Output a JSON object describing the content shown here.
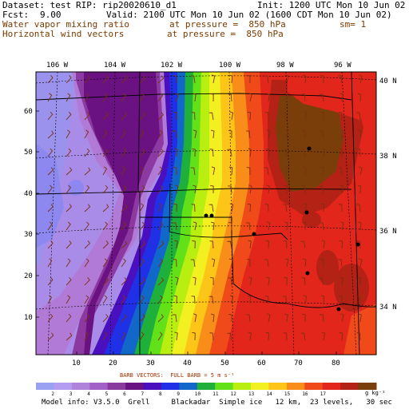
{
  "header": {
    "dataset_label": "Dataset: test",
    "rip_label": "RIP: rip20020610_d1",
    "init_label": "Init: 1200 UTC Mon 10 Jun 02",
    "fcst_label": "Fcst:",
    "fcst_value": "9.00",
    "valid_label": "Valid: 2100 UTC Mon 10 Jun 02 (1600 CDT Mon 10 Jun 02)",
    "field1_name": "Water vapor mixing ratio",
    "field1_level": "at pressure =  850 hPa",
    "field1_extra": "sm= 1",
    "field2_name": "Horizontal wind vectors",
    "field2_level": "at pressure =  850 hPa"
  },
  "map": {
    "top_longitude_labels": [
      "106 W",
      "104 W",
      "102 W",
      "100 W",
      "98 W",
      "96 W"
    ],
    "right_latitude_labels": [
      "40 N",
      "38 N",
      "36 N",
      "34 N"
    ],
    "left_grid_labels": [
      "60",
      "50",
      "40",
      "30",
      "20",
      "10"
    ],
    "bottom_grid_labels": [
      "10",
      "20",
      "30",
      "40",
      "50",
      "60",
      "70",
      "80"
    ]
  },
  "legend": {
    "barb_note": "BARB VECTORS:  FULL BARB = 5 m s⁻¹",
    "values": [
      "2",
      "3",
      "4",
      "5",
      "6",
      "7",
      "8",
      "9",
      "10",
      "11",
      "12",
      "13",
      "14",
      "15",
      "16",
      "17"
    ],
    "units": "g kg⁻¹",
    "colors": [
      "#9aa0f2",
      "#b49cf0",
      "#b083db",
      "#a261c6",
      "#8a3a9d",
      "#6a1282",
      "#4a10c0",
      "#2030e6",
      "#1168c8",
      "#1fb03c",
      "#62e018",
      "#b8ee10",
      "#f2f020",
      "#fcc518",
      "#f98d1a",
      "#f04a1b",
      "#e3261c",
      "#b32214",
      "#7a3e0a"
    ]
  },
  "footer": {
    "model_info": "Model info: V3.5.0  Grell     Blackadar  Simple ice   12 km,  23 levels,   30 sec"
  }
}
